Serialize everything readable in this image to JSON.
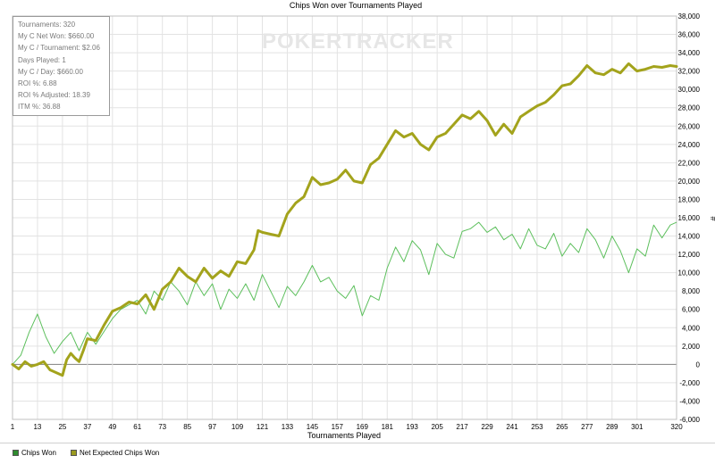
{
  "stats": {
    "lines": [
      "Tournaments: 320",
      "My C Net Won: $660.00",
      "My C / Tournament: $2.06",
      "Days Played: 1",
      "My C / Day: $660.00",
      "ROI %: 6.88",
      "ROI % Adjusted: 18.39",
      "ITM %: 36.88"
    ]
  },
  "watermark": "POKERTRACKER",
  "legend": {
    "items": [
      {
        "label": "Chips Won",
        "color": "#2e8b2e"
      },
      {
        "label": "Net Expected Chips Won",
        "color": "#9a9a1e"
      }
    ]
  },
  "colors": {
    "chips_won": "#5cbf5c",
    "net_expected": "#a3a31c",
    "grid": "#e3e3e3",
    "zero_line": "#808080"
  },
  "chart_data": {
    "type": "line",
    "title": "Chips Won over Tournaments Played",
    "xlabel": "Tournaments Played",
    "ylabel": "#",
    "xlim": [
      1,
      320
    ],
    "ylim": [
      -6000,
      38000
    ],
    "x_ticks": [
      1,
      13,
      25,
      37,
      49,
      61,
      73,
      85,
      97,
      109,
      121,
      133,
      145,
      157,
      169,
      181,
      193,
      205,
      217,
      229,
      241,
      253,
      265,
      277,
      289,
      301,
      320
    ],
    "y_ticks": [
      "-6,000",
      "-4,000",
      "-2,000",
      "0",
      "2,000",
      "4,000",
      "6,000",
      "8,000",
      "10,000",
      "12,000",
      "14,000",
      "16,000",
      "18,000",
      "20,000",
      "22,000",
      "24,000",
      "26,000",
      "28,000",
      "30,000",
      "32,000",
      "34,000",
      "36,000",
      "38,000"
    ],
    "y_tick_values": [
      -6000,
      -4000,
      -2000,
      0,
      2000,
      4000,
      6000,
      8000,
      10000,
      12000,
      14000,
      16000,
      18000,
      20000,
      22000,
      24000,
      26000,
      28000,
      30000,
      32000,
      34000,
      36000,
      38000
    ],
    "grid": true,
    "legend_position": "bottom-left",
    "series": [
      {
        "name": "Chips Won",
        "x": [
          1,
          5,
          9,
          13,
          17,
          21,
          25,
          29,
          33,
          37,
          41,
          45,
          49,
          53,
          57,
          61,
          65,
          69,
          73,
          77,
          81,
          85,
          89,
          93,
          97,
          101,
          105,
          109,
          113,
          117,
          121,
          125,
          129,
          133,
          137,
          141,
          145,
          149,
          153,
          157,
          161,
          165,
          169,
          173,
          177,
          181,
          185,
          189,
          193,
          197,
          201,
          205,
          209,
          213,
          217,
          221,
          225,
          229,
          233,
          237,
          241,
          245,
          249,
          253,
          257,
          261,
          265,
          269,
          273,
          277,
          281,
          285,
          289,
          293,
          297,
          301,
          305,
          309,
          313,
          317,
          320
        ],
        "values": [
          0,
          1000,
          3500,
          5500,
          3000,
          1200,
          2500,
          3500,
          1500,
          3500,
          2200,
          3600,
          5000,
          6000,
          6500,
          7000,
          5500,
          8000,
          7000,
          9000,
          8000,
          6500,
          9000,
          7500,
          8800,
          6000,
          8200,
          7200,
          8800,
          7000,
          9800,
          8000,
          6200,
          8500,
          7500,
          9000,
          10800,
          9000,
          9500,
          8000,
          7200,
          8600,
          5300,
          7500,
          7000,
          10500,
          12800,
          11200,
          13500,
          12500,
          9800,
          13200,
          12000,
          11600,
          14500,
          14800,
          15500,
          14400,
          15000,
          13600,
          14200,
          12600,
          14800,
          13000,
          12600,
          14300,
          11800,
          13200,
          12200,
          14800,
          13600,
          11600,
          14000,
          12400,
          10000,
          12600,
          11800,
          15200,
          13800,
          15200,
          15500
        ]
      },
      {
        "name": "Net Expected Chips Won",
        "x": [
          1,
          4,
          7,
          10,
          13,
          16,
          19,
          22,
          25,
          27,
          29,
          31,
          33,
          35,
          37,
          41,
          45,
          49,
          53,
          57,
          61,
          65,
          69,
          73,
          77,
          81,
          85,
          89,
          93,
          97,
          101,
          105,
          109,
          113,
          117,
          119,
          121,
          125,
          129,
          133,
          137,
          141,
          145,
          149,
          153,
          157,
          161,
          165,
          169,
          173,
          177,
          181,
          185,
          189,
          193,
          197,
          201,
          205,
          209,
          213,
          217,
          221,
          225,
          229,
          233,
          237,
          241,
          245,
          249,
          253,
          257,
          261,
          265,
          269,
          273,
          277,
          281,
          285,
          289,
          293,
          297,
          301,
          305,
          309,
          313,
          317,
          320
        ],
        "values": [
          0,
          -500,
          300,
          -200,
          0,
          300,
          -600,
          -900,
          -1200,
          500,
          1200,
          700,
          300,
          1500,
          2800,
          2600,
          4300,
          5800,
          6200,
          6800,
          6600,
          7600,
          6000,
          8200,
          9000,
          10500,
          9600,
          9000,
          10500,
          9400,
          10200,
          9600,
          11200,
          11000,
          12500,
          14600,
          14400,
          14200,
          14000,
          16400,
          17600,
          18300,
          20400,
          19600,
          19800,
          20200,
          21200,
          20000,
          19800,
          21800,
          22500,
          24000,
          25500,
          24800,
          25200,
          24000,
          23400,
          24800,
          25200,
          26200,
          27200,
          26800,
          27600,
          26600,
          25000,
          26200,
          25200,
          27000,
          27600,
          28200,
          28600,
          29400,
          30400,
          30600,
          31500,
          32600,
          31800,
          31600,
          32200,
          31800,
          32800,
          32000,
          32200,
          32500,
          32400,
          32600,
          32500
        ]
      }
    ]
  }
}
